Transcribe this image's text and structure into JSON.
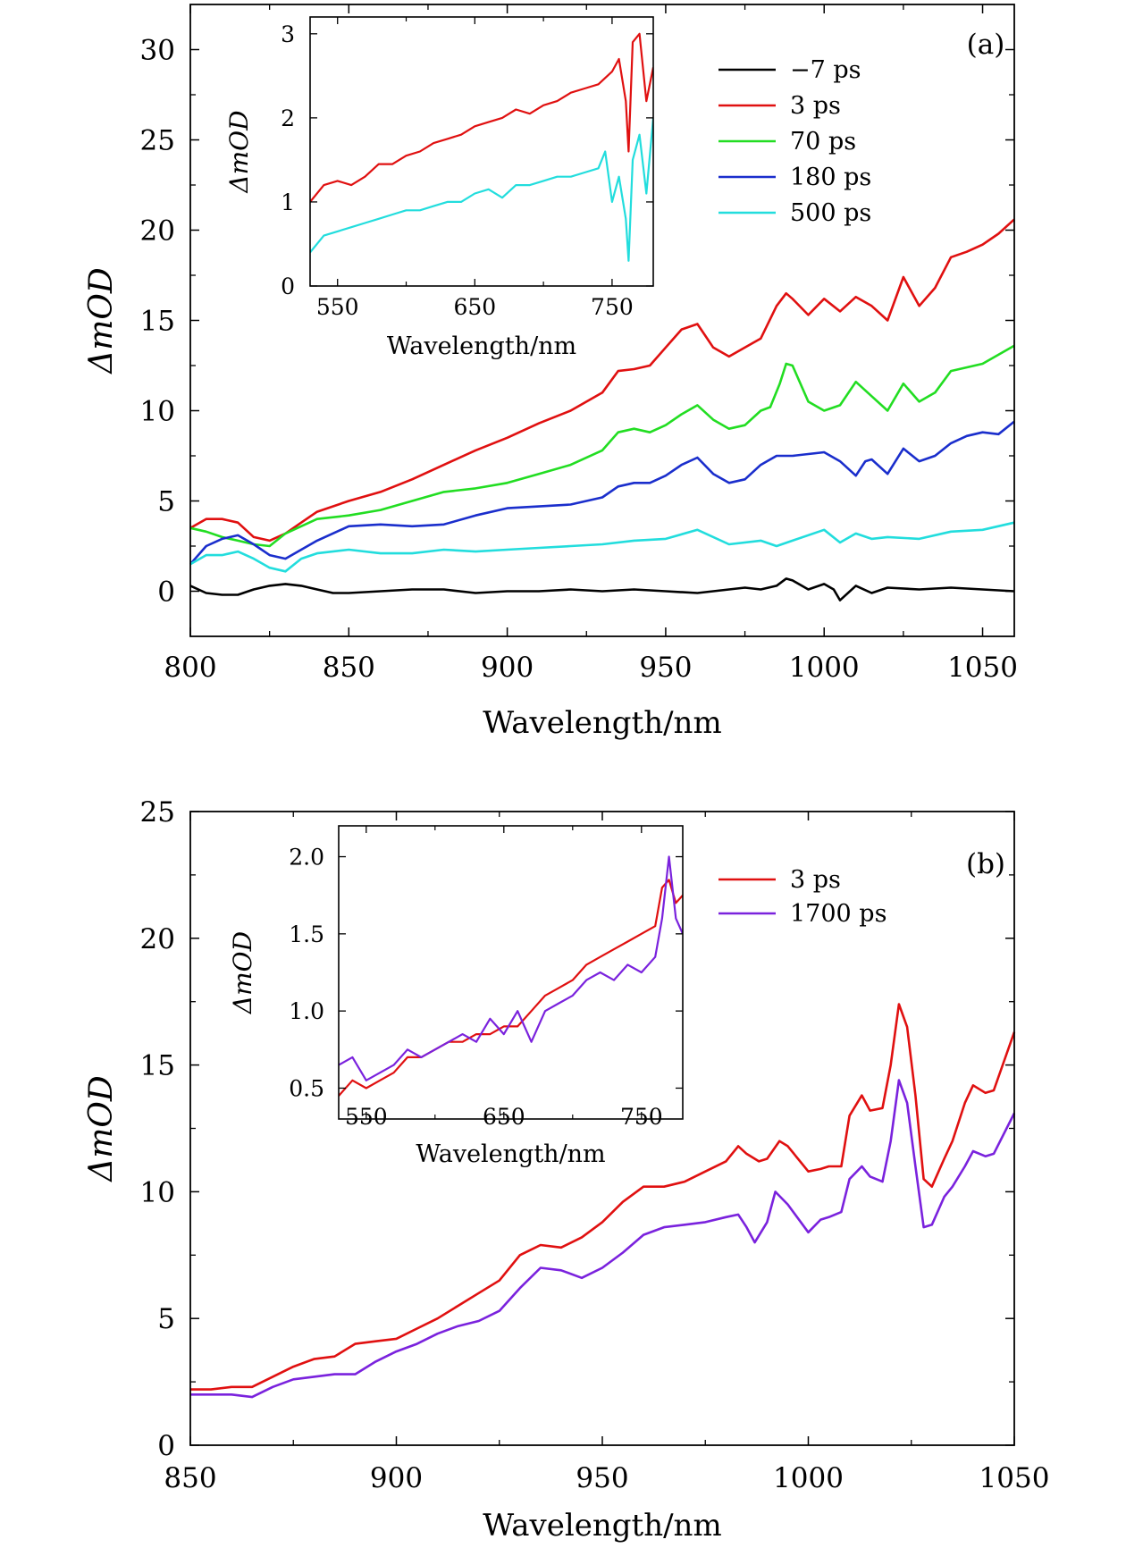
{
  "chart_data": [
    {
      "panel": "a",
      "type": "line",
      "panel_label": "(a)",
      "xlabel": "Wavelength/nm",
      "ylabel": "ΔmOD",
      "xlim": [
        800,
        1060
      ],
      "ylim": [
        -2.5,
        32.5
      ],
      "xticks": [
        800,
        850,
        900,
        950,
        1000,
        1050
      ],
      "yticks": [
        0,
        5,
        10,
        15,
        20,
        25,
        30
      ],
      "grid": false,
      "legend_position": "top-right",
      "series": [
        {
          "name": "−7 ps",
          "color": "#000000",
          "x": [
            800,
            805,
            810,
            815,
            820,
            825,
            830,
            835,
            840,
            845,
            850,
            860,
            870,
            880,
            890,
            900,
            910,
            920,
            930,
            940,
            950,
            960,
            970,
            975,
            980,
            985,
            988,
            990,
            995,
            1000,
            1003,
            1005,
            1010,
            1015,
            1020,
            1030,
            1040,
            1050,
            1060
          ],
          "y": [
            0.3,
            -0.1,
            -0.2,
            -0.2,
            0.1,
            0.3,
            0.4,
            0.3,
            0.1,
            -0.1,
            -0.1,
            0.0,
            0.1,
            0.1,
            -0.1,
            0.0,
            0.0,
            0.1,
            0.0,
            0.1,
            0.0,
            -0.1,
            0.1,
            0.2,
            0.1,
            0.3,
            0.7,
            0.6,
            0.1,
            0.4,
            0.1,
            -0.5,
            0.3,
            -0.1,
            0.2,
            0.1,
            0.2,
            0.1,
            0.0
          ]
        },
        {
          "name": "3 ps",
          "color": "#e01010",
          "x": [
            800,
            805,
            810,
            815,
            820,
            825,
            830,
            835,
            840,
            850,
            860,
            870,
            880,
            890,
            900,
            910,
            920,
            930,
            935,
            940,
            945,
            950,
            955,
            960,
            965,
            970,
            975,
            980,
            985,
            988,
            990,
            995,
            1000,
            1005,
            1010,
            1015,
            1020,
            1025,
            1030,
            1035,
            1040,
            1045,
            1050,
            1055,
            1060
          ],
          "y": [
            3.5,
            4.0,
            4.0,
            3.8,
            3.0,
            2.8,
            3.2,
            3.8,
            4.4,
            5.0,
            5.5,
            6.2,
            7.0,
            7.8,
            8.5,
            9.3,
            10.0,
            11.0,
            12.2,
            12.3,
            12.5,
            13.5,
            14.5,
            14.8,
            13.5,
            13.0,
            13.5,
            14.0,
            15.8,
            16.5,
            16.2,
            15.3,
            16.2,
            15.5,
            16.3,
            15.8,
            15.0,
            17.4,
            15.8,
            16.8,
            18.5,
            18.8,
            19.2,
            19.8,
            20.6
          ]
        },
        {
          "name": "70 ps",
          "color": "#22dd22",
          "x": [
            800,
            805,
            810,
            815,
            820,
            825,
            830,
            840,
            850,
            860,
            870,
            880,
            890,
            900,
            910,
            920,
            930,
            935,
            940,
            945,
            950,
            955,
            960,
            965,
            970,
            975,
            980,
            983,
            986,
            988,
            990,
            995,
            1000,
            1005,
            1010,
            1015,
            1020,
            1025,
            1030,
            1035,
            1040,
            1050,
            1060
          ],
          "y": [
            3.5,
            3.3,
            3.0,
            2.8,
            2.6,
            2.5,
            3.2,
            4.0,
            4.2,
            4.5,
            5.0,
            5.5,
            5.7,
            6.0,
            6.5,
            7.0,
            7.8,
            8.8,
            9.0,
            8.8,
            9.2,
            9.8,
            10.3,
            9.5,
            9.0,
            9.2,
            10.0,
            10.2,
            11.5,
            12.6,
            12.5,
            10.5,
            10.0,
            10.3,
            11.6,
            10.8,
            10.0,
            11.5,
            10.5,
            11.0,
            12.2,
            12.6,
            13.6
          ]
        },
        {
          "name": "180 ps",
          "color": "#1a2ecc",
          "x": [
            800,
            805,
            810,
            815,
            820,
            825,
            830,
            835,
            840,
            850,
            860,
            870,
            880,
            890,
            900,
            910,
            920,
            930,
            935,
            940,
            945,
            950,
            955,
            960,
            965,
            970,
            975,
            980,
            985,
            990,
            995,
            1000,
            1005,
            1010,
            1013,
            1015,
            1020,
            1025,
            1030,
            1035,
            1040,
            1045,
            1050,
            1055,
            1060
          ],
          "y": [
            1.5,
            2.5,
            2.9,
            3.1,
            2.6,
            2.0,
            1.8,
            2.3,
            2.8,
            3.6,
            3.7,
            3.6,
            3.7,
            4.2,
            4.6,
            4.7,
            4.8,
            5.2,
            5.8,
            6.0,
            6.0,
            6.4,
            7.0,
            7.4,
            6.5,
            6.0,
            6.2,
            7.0,
            7.5,
            7.5,
            7.6,
            7.7,
            7.2,
            6.4,
            7.2,
            7.3,
            6.5,
            7.9,
            7.2,
            7.5,
            8.2,
            8.6,
            8.8,
            8.7,
            9.4
          ]
        },
        {
          "name": "500 ps",
          "color": "#22dddd",
          "x": [
            800,
            805,
            810,
            815,
            820,
            825,
            830,
            835,
            840,
            850,
            860,
            870,
            880,
            890,
            900,
            910,
            920,
            930,
            940,
            950,
            960,
            970,
            980,
            985,
            990,
            1000,
            1005,
            1010,
            1015,
            1020,
            1030,
            1040,
            1050,
            1060
          ],
          "y": [
            1.5,
            2.0,
            2.0,
            2.2,
            1.8,
            1.3,
            1.1,
            1.8,
            2.1,
            2.3,
            2.1,
            2.1,
            2.3,
            2.2,
            2.3,
            2.4,
            2.5,
            2.6,
            2.8,
            2.9,
            3.4,
            2.6,
            2.8,
            2.5,
            2.8,
            3.4,
            2.7,
            3.2,
            2.9,
            3.0,
            2.9,
            3.3,
            3.4,
            3.8
          ]
        }
      ],
      "inset": {
        "xlabel": "Wavelength/nm",
        "ylabel": "ΔmOD",
        "xlim": [
          530,
          780
        ],
        "ylim": [
          0,
          3.2
        ],
        "xticks": [
          550,
          650,
          750
        ],
        "yticks": [
          0,
          1,
          2,
          3
        ],
        "series": [
          {
            "name": "3 ps",
            "color": "#e01010",
            "x": [
              530,
              540,
              550,
              560,
              570,
              580,
              590,
              600,
              610,
              620,
              630,
              640,
              650,
              660,
              670,
              680,
              690,
              700,
              710,
              720,
              730,
              740,
              750,
              755,
              760,
              762,
              765,
              770,
              775,
              780
            ],
            "y": [
              1.0,
              1.2,
              1.25,
              1.2,
              1.3,
              1.45,
              1.45,
              1.55,
              1.6,
              1.7,
              1.75,
              1.8,
              1.9,
              1.95,
              2.0,
              2.1,
              2.05,
              2.15,
              2.2,
              2.3,
              2.35,
              2.4,
              2.55,
              2.7,
              2.2,
              1.6,
              2.9,
              3.0,
              2.2,
              2.6
            ]
          },
          {
            "name": "500 ps",
            "color": "#22dddd",
            "x": [
              530,
              540,
              550,
              560,
              570,
              580,
              590,
              600,
              610,
              620,
              630,
              640,
              650,
              660,
              670,
              680,
              690,
              700,
              710,
              720,
              730,
              740,
              745,
              750,
              755,
              760,
              762,
              765,
              770,
              775,
              780
            ],
            "y": [
              0.4,
              0.6,
              0.65,
              0.7,
              0.75,
              0.8,
              0.85,
              0.9,
              0.9,
              0.95,
              1.0,
              1.0,
              1.1,
              1.15,
              1.05,
              1.2,
              1.2,
              1.25,
              1.3,
              1.3,
              1.35,
              1.4,
              1.6,
              1.0,
              1.3,
              0.8,
              0.3,
              1.5,
              1.8,
              1.1,
              2.0
            ]
          }
        ]
      }
    },
    {
      "panel": "b",
      "type": "line",
      "panel_label": "(b)",
      "xlabel": "Wavelength/nm",
      "ylabel": "ΔmOD",
      "xlim": [
        850,
        1050
      ],
      "ylim": [
        0,
        25
      ],
      "xticks": [
        850,
        900,
        950,
        1000,
        1050
      ],
      "yticks": [
        0,
        5,
        10,
        15,
        20,
        25
      ],
      "grid": false,
      "legend_position": "top-right",
      "series": [
        {
          "name": "3 ps",
          "color": "#e01010",
          "x": [
            850,
            855,
            860,
            865,
            870,
            875,
            880,
            885,
            890,
            895,
            900,
            905,
            910,
            915,
            920,
            925,
            930,
            935,
            940,
            945,
            950,
            955,
            960,
            965,
            970,
            975,
            980,
            983,
            985,
            988,
            990,
            993,
            995,
            1000,
            1003,
            1005,
            1008,
            1010,
            1013,
            1015,
            1018,
            1020,
            1022,
            1024,
            1026,
            1028,
            1030,
            1033,
            1035,
            1038,
            1040,
            1043,
            1045,
            1050
          ],
          "y": [
            2.2,
            2.2,
            2.3,
            2.3,
            2.7,
            3.1,
            3.4,
            3.5,
            4.0,
            4.1,
            4.2,
            4.6,
            5.0,
            5.5,
            6.0,
            6.5,
            7.5,
            7.9,
            7.8,
            8.2,
            8.8,
            9.6,
            10.2,
            10.2,
            10.4,
            10.8,
            11.2,
            11.8,
            11.5,
            11.2,
            11.3,
            12.0,
            11.8,
            10.8,
            10.9,
            11.0,
            11.0,
            13.0,
            13.8,
            13.2,
            13.3,
            15.0,
            17.4,
            16.5,
            13.8,
            10.5,
            10.2,
            11.3,
            12.0,
            13.5,
            14.2,
            13.9,
            14.0,
            16.3
          ]
        },
        {
          "name": "1700 ps",
          "color": "#7a22dd",
          "x": [
            850,
            855,
            860,
            865,
            870,
            875,
            880,
            885,
            890,
            895,
            900,
            905,
            910,
            915,
            920,
            925,
            930,
            935,
            940,
            945,
            950,
            955,
            960,
            965,
            970,
            975,
            980,
            983,
            985,
            987,
            990,
            992,
            995,
            1000,
            1003,
            1005,
            1008,
            1010,
            1013,
            1015,
            1018,
            1020,
            1022,
            1024,
            1026,
            1028,
            1030,
            1033,
            1035,
            1038,
            1040,
            1043,
            1045,
            1050
          ],
          "y": [
            2.0,
            2.0,
            2.0,
            1.9,
            2.3,
            2.6,
            2.7,
            2.8,
            2.8,
            3.3,
            3.7,
            4.0,
            4.4,
            4.7,
            4.9,
            5.3,
            6.2,
            7.0,
            6.9,
            6.6,
            7.0,
            7.6,
            8.3,
            8.6,
            8.7,
            8.8,
            9.0,
            9.1,
            8.6,
            8.0,
            8.8,
            10.0,
            9.5,
            8.4,
            8.9,
            9.0,
            9.2,
            10.5,
            11.0,
            10.6,
            10.4,
            12.0,
            14.4,
            13.5,
            11.0,
            8.6,
            8.7,
            9.8,
            10.2,
            11.0,
            11.6,
            11.4,
            11.5,
            13.1
          ]
        }
      ],
      "inset": {
        "xlabel": "Wavelength/nm",
        "ylabel": "ΔmOD",
        "xlim": [
          530,
          780
        ],
        "ylim": [
          0.3,
          2.2
        ],
        "xticks": [
          550,
          650,
          750
        ],
        "yticks": [
          0.5,
          1.0,
          1.5,
          2.0
        ],
        "ytick_labels": [
          "0.5",
          "1.0",
          "1.5",
          "2.0"
        ],
        "series": [
          {
            "name": "3 ps",
            "color": "#e01010",
            "x": [
              530,
              540,
              550,
              560,
              570,
              580,
              590,
              600,
              610,
              620,
              630,
              640,
              650,
              660,
              670,
              680,
              690,
              700,
              710,
              720,
              730,
              740,
              750,
              760,
              765,
              770,
              775,
              780
            ],
            "y": [
              0.45,
              0.55,
              0.5,
              0.55,
              0.6,
              0.7,
              0.7,
              0.75,
              0.8,
              0.8,
              0.85,
              0.85,
              0.9,
              0.9,
              1.0,
              1.1,
              1.15,
              1.2,
              1.3,
              1.35,
              1.4,
              1.45,
              1.5,
              1.55,
              1.8,
              1.85,
              1.7,
              1.75
            ]
          },
          {
            "name": "1700 ps",
            "color": "#7a22dd",
            "x": [
              530,
              540,
              550,
              560,
              570,
              580,
              590,
              600,
              610,
              620,
              630,
              640,
              650,
              660,
              670,
              680,
              690,
              700,
              710,
              720,
              730,
              740,
              750,
              760,
              765,
              770,
              775,
              780
            ],
            "y": [
              0.65,
              0.7,
              0.55,
              0.6,
              0.65,
              0.75,
              0.7,
              0.75,
              0.8,
              0.85,
              0.8,
              0.95,
              0.85,
              1.0,
              0.8,
              1.0,
              1.05,
              1.1,
              1.2,
              1.25,
              1.2,
              1.3,
              1.25,
              1.35,
              1.6,
              2.0,
              1.6,
              1.5
            ]
          }
        ]
      }
    }
  ]
}
